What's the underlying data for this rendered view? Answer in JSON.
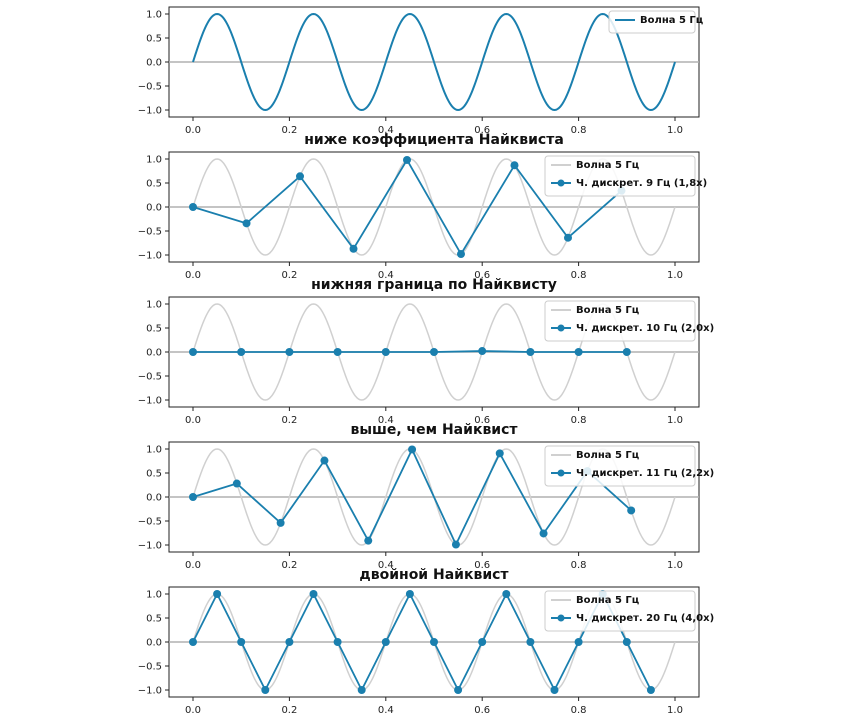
{
  "colors": {
    "primary": "#1a7fae",
    "reference": "#d0d0d0",
    "zero_line": "#b0b0b0"
  },
  "chart_data": [
    {
      "type": "line",
      "title": "",
      "xlim": [
        0,
        1
      ],
      "ylim": [
        -1,
        1
      ],
      "xticks": [
        "0.0",
        "0.2",
        "0.4",
        "0.6",
        "0.8",
        "1.0"
      ],
      "yticks": [
        "1.0",
        "0.5",
        "0.0",
        "−0.5",
        "−1.0"
      ],
      "wave": {
        "name": "Волна 5 Гц",
        "frequency": 5,
        "style": "primary"
      },
      "samples": null
    },
    {
      "type": "line",
      "title": "ниже коэффициента Найквиста",
      "xlim": [
        0,
        1
      ],
      "ylim": [
        -1,
        1
      ],
      "xticks": [
        "0.0",
        "0.2",
        "0.4",
        "0.6",
        "0.8",
        "1.0"
      ],
      "yticks": [
        "1.0",
        "0.5",
        "0.0",
        "−0.5",
        "−1.0"
      ],
      "wave": {
        "name": "Волна 5 Гц",
        "frequency": 5,
        "style": "reference"
      },
      "samples": {
        "name": "Ч. дискрет. 9 Гц (1,8х)",
        "x": [
          0.0,
          0.111,
          0.222,
          0.333,
          0.444,
          0.556,
          0.667,
          0.778,
          0.889
        ],
        "y": [
          0.0,
          -0.34,
          0.64,
          -0.87,
          0.98,
          -0.98,
          0.87,
          -0.64,
          0.34
        ]
      }
    },
    {
      "type": "line",
      "title": "нижняя граница по Найквисту",
      "xlim": [
        0,
        1
      ],
      "ylim": [
        -1,
        1
      ],
      "xticks": [
        "0.0",
        "0.2",
        "0.4",
        "0.6",
        "0.8",
        "1.0"
      ],
      "yticks": [
        "1.0",
        "0.5",
        "0.0",
        "−0.5",
        "−1.0"
      ],
      "wave": {
        "name": "Волна 5 Гц",
        "frequency": 5,
        "style": "reference"
      },
      "samples": {
        "name": "Ч. дискрет. 10 Гц (2,0х)",
        "x": [
          0.0,
          0.1,
          0.2,
          0.3,
          0.4,
          0.5,
          0.6,
          0.7,
          0.8,
          0.9
        ],
        "y": [
          0.0,
          0.0,
          0.0,
          0.0,
          0.0,
          0.0,
          0.02,
          0.0,
          0.0,
          0.0
        ]
      }
    },
    {
      "type": "line",
      "title": "выше, чем Найквист",
      "xlim": [
        0,
        1
      ],
      "ylim": [
        -1,
        1
      ],
      "xticks": [
        "0.0",
        "0.2",
        "0.4",
        "0.6",
        "0.8",
        "1.0"
      ],
      "yticks": [
        "1.0",
        "0.5",
        "0.0",
        "−0.5",
        "−1.0"
      ],
      "wave": {
        "name": "Волна 5 Гц",
        "frequency": 5,
        "style": "reference"
      },
      "samples": {
        "name": "Ч. дискрет. 11 Гц (2,2х)",
        "x": [
          0.0,
          0.0909,
          0.1818,
          0.2727,
          0.3636,
          0.4545,
          0.5455,
          0.6364,
          0.7273,
          0.8182,
          0.9091
        ],
        "y": [
          0.0,
          0.28,
          -0.54,
          0.76,
          -0.91,
          0.99,
          -0.99,
          0.91,
          -0.76,
          0.54,
          -0.28
        ]
      }
    },
    {
      "type": "line",
      "title": "двойной Найквист",
      "xlim": [
        0,
        1
      ],
      "ylim": [
        -1,
        1
      ],
      "xticks": [
        "0.0",
        "0.2",
        "0.4",
        "0.6",
        "0.8",
        "1.0"
      ],
      "yticks": [
        "1.0",
        "0.5",
        "0.0",
        "−0.5",
        "−1.0"
      ],
      "wave": {
        "name": "Волна 5 Гц",
        "frequency": 5,
        "style": "reference"
      },
      "samples": {
        "name": "Ч. дискрет. 20 Гц (4,0х)",
        "x": [
          0.0,
          0.05,
          0.1,
          0.15,
          0.2,
          0.25,
          0.3,
          0.35,
          0.4,
          0.45,
          0.5,
          0.55,
          0.6,
          0.65,
          0.7,
          0.75,
          0.8,
          0.85,
          0.9,
          0.95
        ],
        "y": [
          0,
          1,
          0,
          -1,
          0,
          1,
          0,
          -1,
          0,
          1,
          0,
          -1,
          0,
          1,
          0,
          -1,
          0,
          1,
          0,
          -1
        ]
      }
    }
  ]
}
